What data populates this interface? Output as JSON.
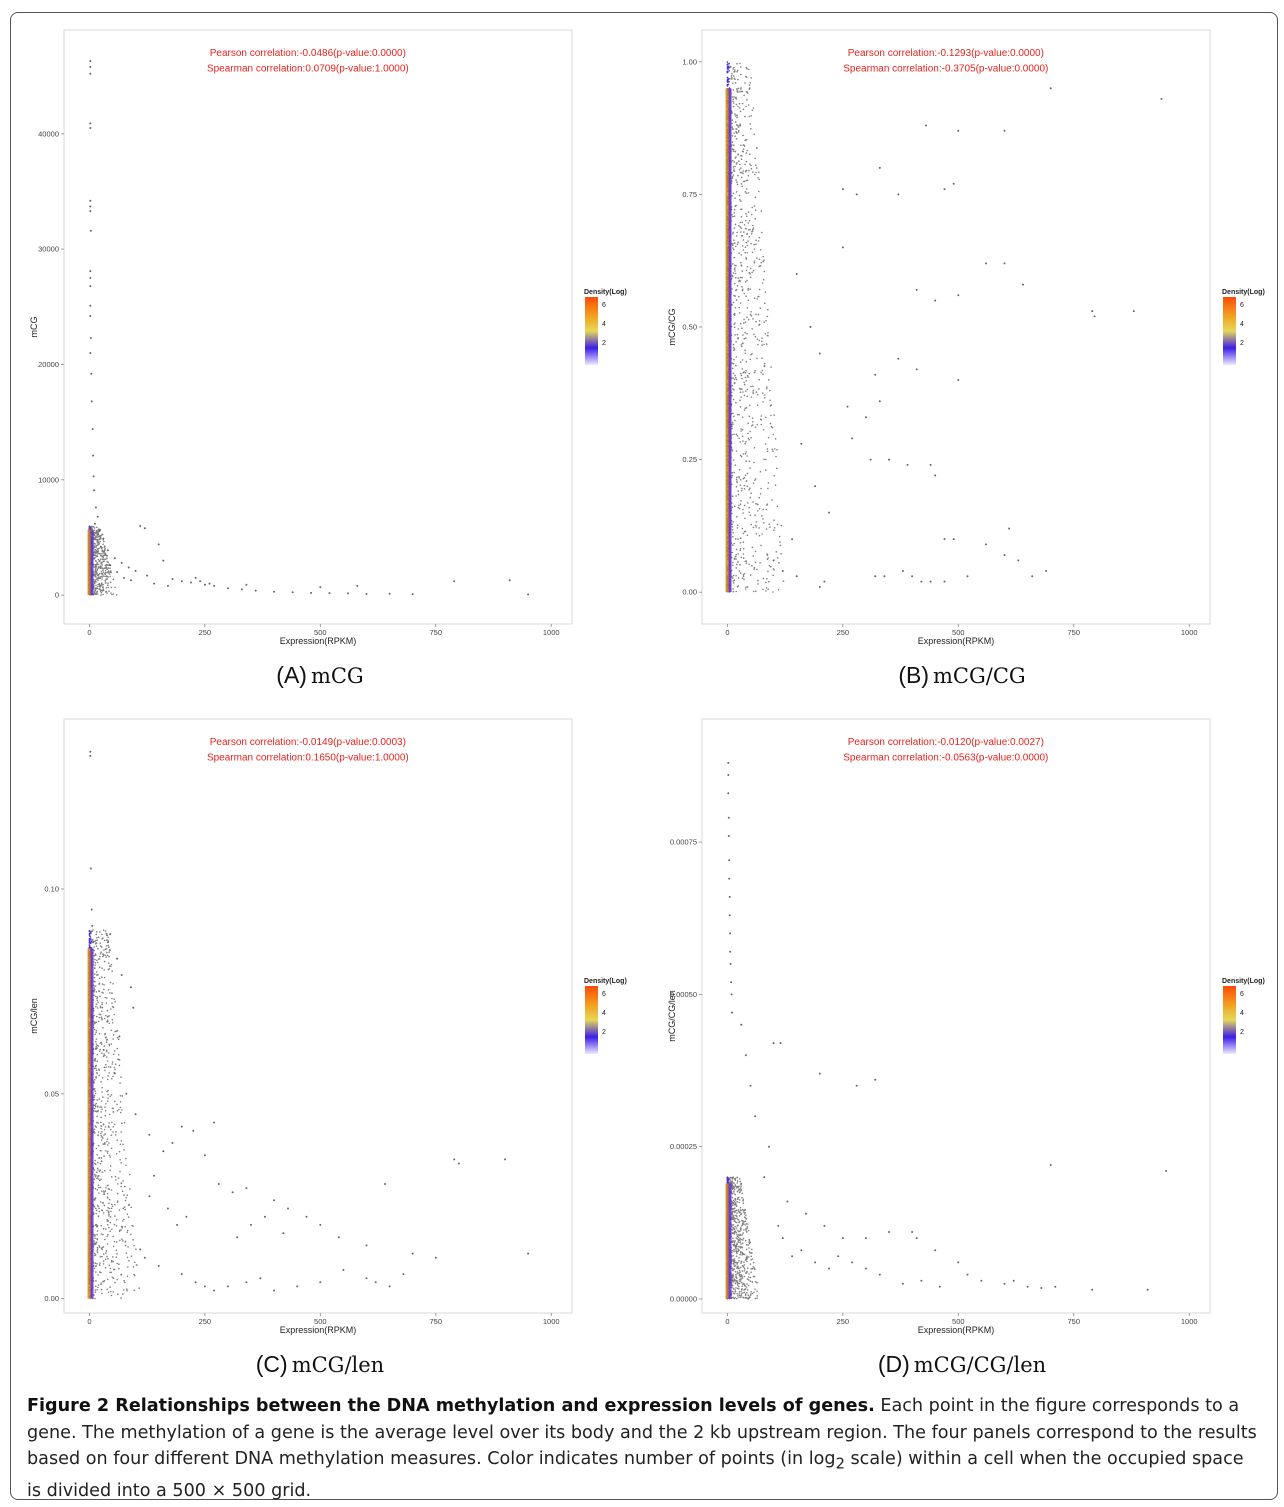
{
  "figure": {
    "caption_title": "Figure 2 Relationships between the DNA methylation and expression levels of genes.",
    "caption_body_1": "Each point in the figure corresponds to a gene. The methylation of a gene is the average level over its body and the 2 kb upstream region. The four panels correspond to the results based on four different DNA methylation measures. Color indicates number of points (in log",
    "caption_sub": "2",
    "caption_body_2": " scale) within a cell when the occupied space is divided into a 500 × 500 grid."
  },
  "chart_data": [
    {
      "id": "A",
      "type": "scatter",
      "tag": "(A)",
      "label": "mCG",
      "xlabel": "Expression(RPKM)",
      "ylabel": "mCG",
      "xlim": [
        -55,
        1045
      ],
      "ylim": [
        -2500,
        49000
      ],
      "xticks": [
        0,
        250,
        500,
        750,
        1000
      ],
      "xtick_labels": [
        "0",
        "250",
        "500",
        "750",
        "1000"
      ],
      "yticks": [
        0,
        10000,
        20000,
        30000,
        40000
      ],
      "ytick_labels": [
        "0",
        "10000",
        "20000",
        "30000",
        "40000"
      ],
      "annotations": [
        "Pearson  correlation:-0.0486(p-value:0.0000)",
        "Spearman correlation:0.0709(p-value:1.0000)"
      ],
      "legend": {
        "title": "Density(Log)",
        "ticks": [
          "6",
          "4",
          "2"
        ],
        "position": "right"
      },
      "points": [
        [
          2,
          46300
        ],
        [
          2,
          45800
        ],
        [
          2,
          45200
        ],
        [
          2,
          40900
        ],
        [
          2,
          40500
        ],
        [
          2,
          34200
        ],
        [
          2,
          33700
        ],
        [
          2,
          33300
        ],
        [
          3,
          31600
        ],
        [
          2,
          28100
        ],
        [
          2,
          27500
        ],
        [
          2,
          26800
        ],
        [
          2,
          25100
        ],
        [
          2,
          24200
        ],
        [
          3,
          22300
        ],
        [
          2,
          21000
        ],
        [
          4,
          19200
        ],
        [
          5,
          16800
        ],
        [
          7,
          14400
        ],
        [
          8,
          12100
        ],
        [
          9,
          10300
        ],
        [
          10,
          9100
        ],
        [
          14,
          7600
        ],
        [
          18,
          6800
        ],
        [
          12,
          6200
        ],
        [
          22,
          5600
        ],
        [
          30,
          4900
        ],
        [
          25,
          4200
        ],
        [
          40,
          3900
        ],
        [
          55,
          3200
        ],
        [
          70,
          2800
        ],
        [
          85,
          2400
        ],
        [
          100,
          2100
        ],
        [
          125,
          1700
        ],
        [
          110,
          6000
        ],
        [
          120,
          5800
        ],
        [
          150,
          4400
        ],
        [
          160,
          3000
        ],
        [
          180,
          1400
        ],
        [
          200,
          1200
        ],
        [
          220,
          1100
        ],
        [
          250,
          900
        ],
        [
          270,
          800
        ],
        [
          300,
          600
        ],
        [
          330,
          500
        ],
        [
          360,
          400
        ],
        [
          400,
          300
        ],
        [
          440,
          250
        ],
        [
          480,
          200
        ],
        [
          520,
          180
        ],
        [
          560,
          150
        ],
        [
          600,
          100
        ],
        [
          650,
          120
        ],
        [
          700,
          90
        ],
        [
          790,
          1200
        ],
        [
          910,
          1300
        ],
        [
          950,
          60
        ],
        [
          260,
          1000
        ],
        [
          230,
          1500
        ],
        [
          240,
          1200
        ],
        [
          340,
          900
        ],
        [
          500,
          700
        ],
        [
          580,
          800
        ],
        [
          35,
          3500
        ],
        [
          45,
          2600
        ],
        [
          60,
          2000
        ],
        [
          75,
          1500
        ],
        [
          90,
          1300
        ],
        [
          140,
          1000
        ],
        [
          170,
          800
        ]
      ],
      "dense": {
        "x_max": 60,
        "y_max": 6000,
        "count": 950
      }
    },
    {
      "id": "B",
      "type": "scatter",
      "tag": "(B)",
      "label": "mCG/CG",
      "xlabel": "Expression(RPKM)",
      "ylabel": "mCG/CG",
      "xlim": [
        -55,
        1045
      ],
      "ylim": [
        -0.06,
        1.06
      ],
      "xticks": [
        0,
        250,
        500,
        750,
        1000
      ],
      "xtick_labels": [
        "0",
        "250",
        "500",
        "750",
        "1000"
      ],
      "yticks": [
        0,
        0.25,
        0.5,
        0.75,
        1.0
      ],
      "ytick_labels": [
        "0.00",
        "0.25",
        "0.50",
        "0.75",
        "1.00"
      ],
      "annotations": [
        "Pearson  correlation:-0.1293(p-value:0.0000)",
        "Spearman correlation:-0.3705(p-value:0.0000)"
      ],
      "legend": {
        "title": "Density(Log)",
        "ticks": [
          "6",
          "4",
          "2"
        ],
        "position": "right"
      },
      "points": [
        [
          940,
          0.93
        ],
        [
          430,
          0.88
        ],
        [
          500,
          0.87
        ],
        [
          600,
          0.87
        ],
        [
          490,
          0.77
        ],
        [
          470,
          0.76
        ],
        [
          370,
          0.75
        ],
        [
          330,
          0.8
        ],
        [
          280,
          0.75
        ],
        [
          250,
          0.76
        ],
        [
          790,
          0.53
        ],
        [
          795,
          0.52
        ],
        [
          880,
          0.53
        ],
        [
          410,
          0.57
        ],
        [
          450,
          0.55
        ],
        [
          500,
          0.4
        ],
        [
          370,
          0.44
        ],
        [
          410,
          0.42
        ],
        [
          320,
          0.41
        ],
        [
          260,
          0.35
        ],
        [
          300,
          0.33
        ],
        [
          330,
          0.36
        ],
        [
          270,
          0.29
        ],
        [
          310,
          0.25
        ],
        [
          350,
          0.25
        ],
        [
          390,
          0.24
        ],
        [
          440,
          0.24
        ],
        [
          450,
          0.22
        ],
        [
          470,
          0.1
        ],
        [
          490,
          0.1
        ],
        [
          560,
          0.09
        ],
        [
          600,
          0.07
        ],
        [
          610,
          0.12
        ],
        [
          630,
          0.06
        ],
        [
          660,
          0.03
        ],
        [
          690,
          0.04
        ],
        [
          320,
          0.03
        ],
        [
          340,
          0.03
        ],
        [
          380,
          0.04
        ],
        [
          400,
          0.03
        ],
        [
          420,
          0.02
        ],
        [
          440,
          0.02
        ],
        [
          470,
          0.02
        ],
        [
          520,
          0.03
        ],
        [
          210,
          0.02
        ],
        [
          200,
          0.01
        ],
        [
          150,
          0.03
        ],
        [
          120,
          0.04
        ],
        [
          100,
          0.06
        ],
        [
          560,
          0.62
        ],
        [
          500,
          0.56
        ],
        [
          700,
          0.95
        ],
        [
          600,
          0.62
        ],
        [
          640,
          0.58
        ],
        [
          250,
          0.65
        ],
        [
          200,
          0.45
        ],
        [
          180,
          0.5
        ],
        [
          150,
          0.6
        ],
        [
          160,
          0.28
        ],
        [
          190,
          0.2
        ],
        [
          220,
          0.15
        ],
        [
          140,
          0.1
        ]
      ],
      "dense": {
        "x_max": 130,
        "y_max": 1.0,
        "count": 1600
      }
    },
    {
      "id": "C",
      "type": "scatter",
      "tag": "(C)",
      "label": "mCG/len",
      "xlabel": "Expression(RPKM)",
      "ylabel": "mCG/len",
      "xlim": [
        -55,
        1045
      ],
      "ylim": [
        -0.0035,
        0.1415
      ],
      "xticks": [
        0,
        250,
        500,
        750,
        1000
      ],
      "xtick_labels": [
        "0",
        "250",
        "500",
        "750",
        "1000"
      ],
      "yticks": [
        0,
        0.05,
        0.1
      ],
      "ytick_labels": [
        "0.00",
        "0.05",
        "0.10"
      ],
      "annotations": [
        "Pearson  correlation:-0.0149(p-value:0.0003)",
        "Spearman correlation:0.1650(p-value:1.0000)"
      ],
      "legend": {
        "title": "Density(Log)",
        "ticks": [
          "6",
          "4",
          "2"
        ],
        "position": "right"
      },
      "points": [
        [
          2,
          0.1335
        ],
        [
          2,
          0.1325
        ],
        [
          3,
          0.105
        ],
        [
          5,
          0.095
        ],
        [
          6,
          0.091
        ],
        [
          8,
          0.087
        ],
        [
          40,
          0.087
        ],
        [
          45,
          0.089
        ],
        [
          60,
          0.083
        ],
        [
          70,
          0.079
        ],
        [
          90,
          0.076
        ],
        [
          95,
          0.071
        ],
        [
          65,
          0.064
        ],
        [
          55,
          0.055
        ],
        [
          80,
          0.05
        ],
        [
          100,
          0.045
        ],
        [
          130,
          0.04
        ],
        [
          200,
          0.042
        ],
        [
          270,
          0.043
        ],
        [
          225,
          0.041
        ],
        [
          180,
          0.038
        ],
        [
          160,
          0.036
        ],
        [
          250,
          0.035
        ],
        [
          280,
          0.028
        ],
        [
          310,
          0.026
        ],
        [
          340,
          0.027
        ],
        [
          400,
          0.024
        ],
        [
          430,
          0.022
        ],
        [
          470,
          0.02
        ],
        [
          500,
          0.018
        ],
        [
          540,
          0.015
        ],
        [
          600,
          0.013
        ],
        [
          640,
          0.028
        ],
        [
          700,
          0.011
        ],
        [
          750,
          0.01
        ],
        [
          790,
          0.034
        ],
        [
          800,
          0.033
        ],
        [
          900,
          0.034
        ],
        [
          950,
          0.011
        ],
        [
          370,
          0.005
        ],
        [
          340,
          0.004
        ],
        [
          300,
          0.003
        ],
        [
          270,
          0.002
        ],
        [
          250,
          0.003
        ],
        [
          230,
          0.004
        ],
        [
          200,
          0.006
        ],
        [
          150,
          0.008
        ],
        [
          120,
          0.01
        ],
        [
          110,
          0.012
        ],
        [
          320,
          0.015
        ],
        [
          350,
          0.018
        ],
        [
          380,
          0.02
        ],
        [
          420,
          0.016
        ],
        [
          600,
          0.005
        ],
        [
          620,
          0.004
        ],
        [
          650,
          0.003
        ],
        [
          680,
          0.006
        ],
        [
          550,
          0.007
        ],
        [
          500,
          0.004
        ],
        [
          450,
          0.003
        ],
        [
          400,
          0.002
        ],
        [
          130,
          0.025
        ],
        [
          140,
          0.03
        ],
        [
          170,
          0.022
        ],
        [
          190,
          0.018
        ],
        [
          210,
          0.02
        ]
      ],
      "dense": {
        "x_max": 110,
        "y_max": 0.09,
        "count": 1500
      }
    },
    {
      "id": "D",
      "type": "scatter",
      "tag": "(D)",
      "label": "mCG/CG/len",
      "xlabel": "Expression(RPKM)",
      "ylabel": "mCG/CG/len",
      "xlim": [
        -55,
        1045
      ],
      "ylim": [
        -2.3e-05,
        0.000952
      ],
      "xticks": [
        0,
        250,
        500,
        750,
        1000
      ],
      "xtick_labels": [
        "0",
        "250",
        "500",
        "750",
        "1000"
      ],
      "yticks": [
        0,
        0.00025,
        0.0005,
        0.00075
      ],
      "ytick_labels": [
        "0.00000",
        "0.00025",
        "0.00050",
        "0.00075"
      ],
      "annotations": [
        "Pearson  correlation:-0.0120(p-value:0.0027)",
        "Spearman correlation:-0.0563(p-value:0.0000)"
      ],
      "legend": {
        "title": "Density(Log)",
        "ticks": [
          "6",
          "4",
          "2"
        ],
        "position": "right"
      },
      "points": [
        [
          2,
          0.00088
        ],
        [
          2,
          0.00086
        ],
        [
          2,
          0.00083
        ],
        [
          3,
          0.00079
        ],
        [
          3,
          0.00076
        ],
        [
          4,
          0.00072
        ],
        [
          4,
          0.00069
        ],
        [
          5,
          0.00066
        ],
        [
          5,
          0.00063
        ],
        [
          6,
          0.0006
        ],
        [
          6,
          0.00057
        ],
        [
          7,
          0.00055
        ],
        [
          8,
          0.00052
        ],
        [
          9,
          0.0005
        ],
        [
          10,
          0.00047
        ],
        [
          100,
          0.00042
        ],
        [
          115,
          0.00042
        ],
        [
          200,
          0.00037
        ],
        [
          320,
          0.00036
        ],
        [
          280,
          0.00035
        ],
        [
          30,
          0.00045
        ],
        [
          40,
          0.0004
        ],
        [
          50,
          0.00035
        ],
        [
          60,
          0.0003
        ],
        [
          90,
          0.00025
        ],
        [
          80,
          0.0002
        ],
        [
          130,
          0.00016
        ],
        [
          170,
          0.00014
        ],
        [
          210,
          0.00012
        ],
        [
          250,
          0.0001
        ],
        [
          300,
          0.0001
        ],
        [
          350,
          0.00011
        ],
        [
          400,
          0.00011
        ],
        [
          410,
          0.0001
        ],
        [
          450,
          8e-05
        ],
        [
          500,
          6e-05
        ],
        [
          520,
          4e-05
        ],
        [
          550,
          3e-05
        ],
        [
          600,
          2.5e-05
        ],
        [
          650,
          2e-05
        ],
        [
          700,
          0.00022
        ],
        [
          710,
          2e-05
        ],
        [
          790,
          1.5e-05
        ],
        [
          910,
          1.5e-05
        ],
        [
          950,
          0.00021
        ],
        [
          300,
          5e-05
        ],
        [
          330,
          4e-05
        ],
        [
          270,
          6e-05
        ],
        [
          240,
          7e-05
        ],
        [
          220,
          5e-05
        ],
        [
          190,
          6e-05
        ],
        [
          160,
          8e-05
        ],
        [
          140,
          7e-05
        ],
        [
          120,
          0.0001
        ],
        [
          110,
          0.00012
        ],
        [
          420,
          3e-05
        ],
        [
          460,
          2e-05
        ],
        [
          380,
          2.5e-05
        ],
        [
          620,
          3e-05
        ],
        [
          680,
          1.8e-05
        ]
      ],
      "dense": {
        "x_max": 70,
        "y_max": 0.0002,
        "count": 1300
      }
    }
  ]
}
